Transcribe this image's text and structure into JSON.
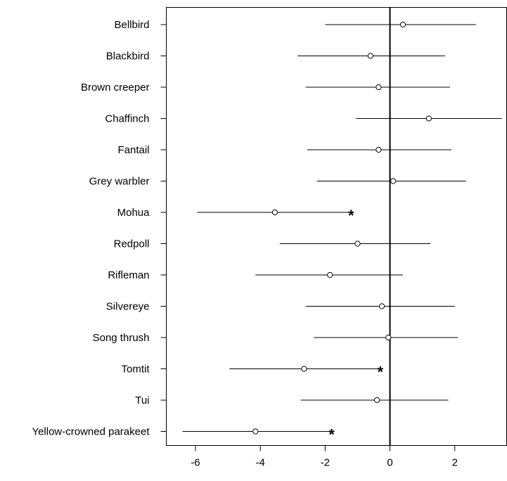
{
  "chart_data": {
    "type": "scatter",
    "title": "",
    "xlabel": "",
    "ylabel": "",
    "xlim": [
      -6.9,
      3.6
    ],
    "x_ticks": [
      -6,
      -4,
      -2,
      0,
      2
    ],
    "x_tick_labels": [
      "-6",
      "-4",
      "-2",
      "0",
      "2"
    ],
    "reference_line_x": 0,
    "significance_marker": "*",
    "categories": [
      "Bellbird",
      "Blackbird",
      "Brown creeper",
      "Chaffinch",
      "Fantail",
      "Grey warbler",
      "Mohua",
      "Redpoll",
      "Rifleman",
      "Silvereye",
      "Song thrush",
      "Tomtit",
      "Tui",
      "Yellow-crowned parakeet"
    ],
    "series": [
      {
        "estimates": [
          0.4,
          -0.6,
          -0.35,
          1.2,
          -0.35,
          0.1,
          -3.55,
          -1.0,
          -1.85,
          -0.25,
          -0.05,
          -2.65,
          -0.4,
          -4.15
        ],
        "lower": [
          -2.0,
          -2.85,
          -2.6,
          -1.05,
          -2.55,
          -2.25,
          -5.95,
          -3.4,
          -4.15,
          -2.6,
          -2.35,
          -4.95,
          -2.75,
          -6.4
        ],
        "upper": [
          2.65,
          1.7,
          1.85,
          3.45,
          1.9,
          2.35,
          -1.2,
          1.25,
          0.4,
          2.0,
          2.1,
          -0.3,
          1.8,
          -1.8
        ],
        "significant": [
          false,
          false,
          false,
          false,
          false,
          false,
          true,
          false,
          false,
          false,
          false,
          true,
          false,
          true
        ]
      }
    ]
  }
}
